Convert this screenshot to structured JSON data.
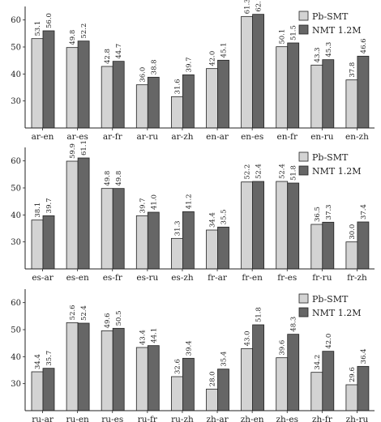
{
  "colors": {
    "pb_smt": "#d3d3d3",
    "nmt": "#666666",
    "axis": "#222222",
    "bar_stroke": "#222222"
  },
  "chart_data": [
    {
      "type": "bar",
      "ylim": [
        20,
        65
      ],
      "yticks": [
        30,
        40,
        50,
        60
      ],
      "legend": "top-right",
      "grid": false,
      "categories": [
        "ar-en",
        "ar-es",
        "ar-fr",
        "ar-ru",
        "ar-zh",
        "en-ar",
        "en-es",
        "en-fr",
        "en-ru",
        "en-zh"
      ],
      "series": [
        {
          "name": "Pb-SMT",
          "values": [
            53.1,
            49.8,
            42.8,
            36.0,
            31.6,
            42.0,
            61.3,
            50.1,
            43.3,
            37.8
          ],
          "labels": [
            "53.1",
            "49.8",
            "42.8",
            "36.0",
            "31.6",
            "42.0",
            "61.3",
            "50.1",
            "43.3",
            "37.8"
          ]
        },
        {
          "name": "NMT 1.2M",
          "values": [
            56.0,
            52.2,
            44.7,
            38.8,
            39.7,
            45.1,
            62.1,
            51.5,
            45.3,
            46.6
          ],
          "labels": [
            "56.0",
            "52.2",
            "44.7",
            "38.8",
            "39.7",
            "45.1",
            "62.1",
            "51.5",
            "45.3",
            "46.6"
          ]
        }
      ]
    },
    {
      "type": "bar",
      "ylim": [
        20,
        65
      ],
      "yticks": [
        30,
        40,
        50,
        60
      ],
      "legend": "top-right",
      "grid": false,
      "categories": [
        "es-ar",
        "es-en",
        "es-fr",
        "es-ru",
        "es-zh",
        "fr-ar",
        "fr-en",
        "fr-es",
        "fr-ru",
        "fr-zh"
      ],
      "series": [
        {
          "name": "Pb-SMT",
          "values": [
            38.1,
            59.9,
            49.8,
            39.7,
            31.3,
            34.4,
            52.2,
            52.4,
            36.5,
            30.0
          ],
          "labels": [
            "38.1",
            "59.9",
            "49.8",
            "39.7",
            "31.3",
            "34.4",
            "52.2",
            "52.4",
            "36.5",
            "30.0"
          ]
        },
        {
          "name": "NMT 1.2M",
          "values": [
            39.7,
            61.1,
            49.8,
            41.0,
            41.2,
            35.5,
            52.4,
            51.8,
            37.3,
            37.4
          ],
          "labels": [
            "39.7",
            "61.1",
            "49.8",
            "41.0",
            "41.2",
            "35.5",
            "52.4",
            "51.8",
            "37.3",
            "37.4"
          ]
        }
      ]
    },
    {
      "type": "bar",
      "ylim": [
        20,
        65
      ],
      "yticks": [
        30,
        40,
        50,
        60
      ],
      "legend": "top-right",
      "grid": false,
      "categories": [
        "ru-ar",
        "ru-en",
        "ru-es",
        "ru-fr",
        "ru-zh",
        "zh-ar",
        "zh-en",
        "zh-es",
        "zh-fr",
        "zh-ru"
      ],
      "series": [
        {
          "name": "Pb-SMT",
          "values": [
            34.4,
            52.6,
            49.6,
            43.4,
            32.6,
            28.0,
            43.0,
            39.6,
            34.2,
            29.6
          ],
          "labels": [
            "34.4",
            "52.6",
            "49.6",
            "43.4",
            "32.6",
            "28.0",
            "43.0",
            "39.6",
            "34.2",
            "29.6"
          ]
        },
        {
          "name": "NMT 1.2M",
          "values": [
            35.7,
            52.4,
            50.5,
            44.1,
            39.4,
            35.4,
            51.8,
            48.3,
            42.0,
            36.4
          ],
          "labels": [
            "35.7",
            "52.4",
            "50.5",
            "44.1",
            "39.4",
            "35.4",
            "51.8",
            "48.3",
            "42.0",
            "36.4"
          ]
        }
      ]
    }
  ]
}
